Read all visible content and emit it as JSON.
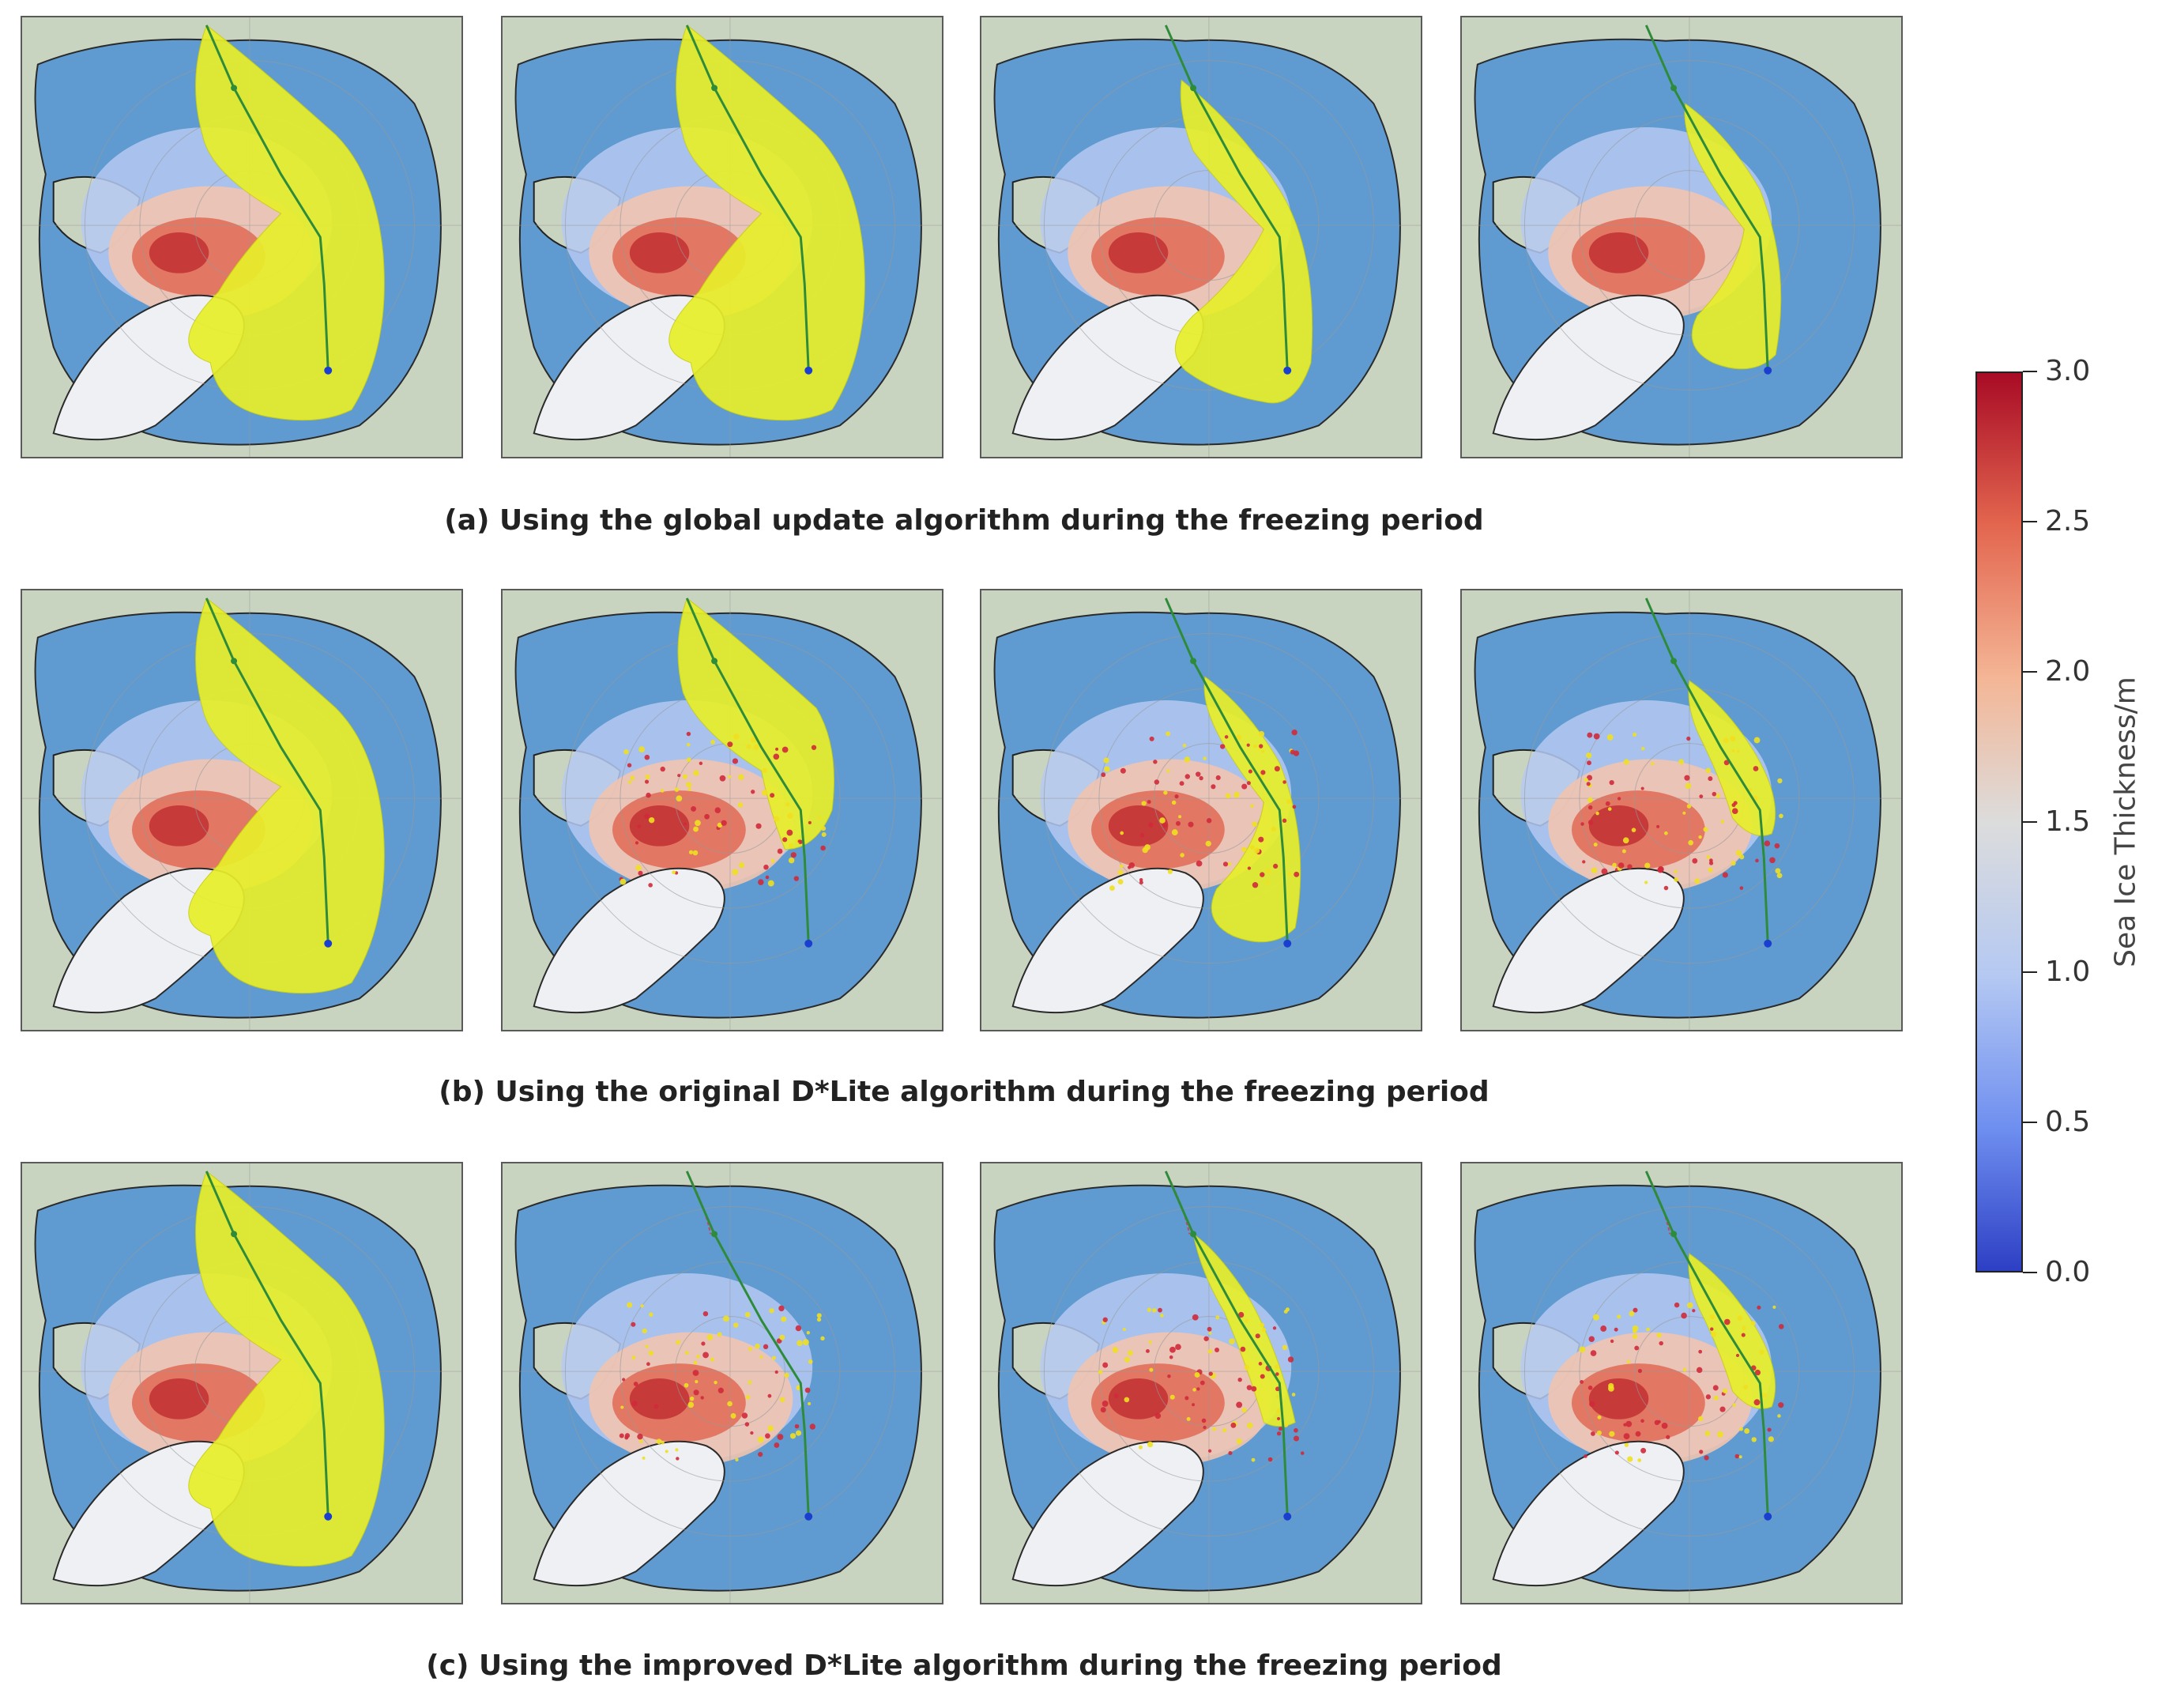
{
  "captions": {
    "a": "(a) Using the global update algorithm during the freezing period",
    "b": "(b) Using the original D*Lite algorithm during the freezing period",
    "c": "(c) Using the improved D*Lite algorithm during the freezing period"
  },
  "colorbar": {
    "label": "Sea Ice Thickness/m",
    "ticks": [
      "0.0",
      "0.5",
      "1.0",
      "1.5",
      "2.0",
      "2.5",
      "3.0"
    ],
    "min": 0.0,
    "max": 3.0,
    "colormap": [
      "#2d3fc4",
      "#6f8ff0",
      "#b5c9f2",
      "#dcdcdc",
      "#f4b696",
      "#e3664f",
      "#a80b25"
    ]
  },
  "colors": {
    "ocean": "#5f9bd0",
    "land": "#c9d4c0",
    "greenland": "#eef0f4",
    "search_area": "#e8ef2a",
    "path": "#2e8b3a",
    "explored_path": "#d04060"
  },
  "rows": [
    {
      "id": "a",
      "panels": [
        {
          "search_extent": "full",
          "changed_cells": false,
          "explored_path": false
        },
        {
          "search_extent": "full",
          "changed_cells": false,
          "explored_path": false
        },
        {
          "search_extent": "reduced",
          "changed_cells": false,
          "explored_path": false
        },
        {
          "search_extent": "small",
          "changed_cells": false,
          "explored_path": false
        }
      ]
    },
    {
      "id": "b",
      "panels": [
        {
          "search_extent": "full",
          "changed_cells": false,
          "explored_path": false
        },
        {
          "search_extent": "partial",
          "changed_cells": true,
          "explored_path": false
        },
        {
          "search_extent": "small",
          "changed_cells": true,
          "explored_path": false
        },
        {
          "search_extent": "tiny",
          "changed_cells": true,
          "explored_path": false
        }
      ]
    },
    {
      "id": "c",
      "panels": [
        {
          "search_extent": "full",
          "changed_cells": false,
          "explored_path": false
        },
        {
          "search_extent": "none",
          "changed_cells": true,
          "explored_path": true
        },
        {
          "search_extent": "strip",
          "changed_cells": true,
          "explored_path": true
        },
        {
          "search_extent": "tiny",
          "changed_cells": true,
          "explored_path": true
        }
      ]
    }
  ]
}
